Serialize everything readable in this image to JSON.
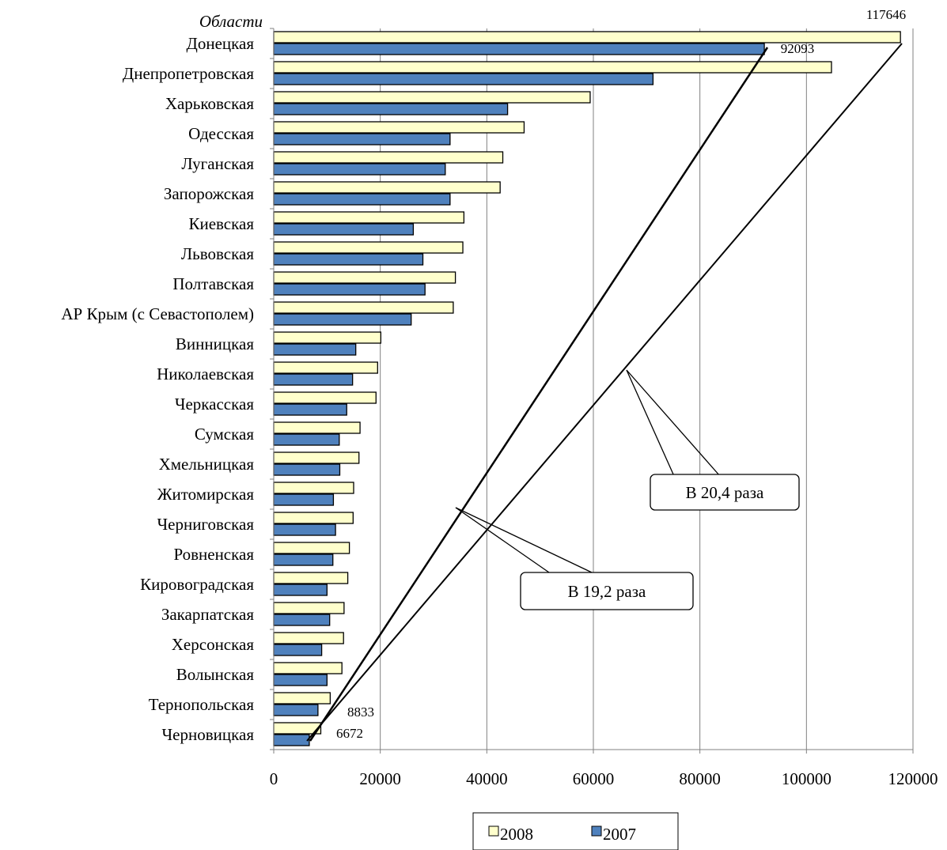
{
  "chart_data": {
    "type": "bar",
    "orientation": "horizontal",
    "y_axis_title": "Области",
    "categories": [
      "Донецкая",
      "Днепропетровская",
      "Харьковская",
      "Одесская",
      "Луганская",
      "Запорожская",
      "Киевская",
      "Львовская",
      "Полтавская",
      "АР Крым (с Севастополем)",
      "Винницкая",
      "Николаевская",
      "Черкасская",
      "Сумская",
      "Хмельницкая",
      "Житомирская",
      "Черниговская",
      "Ровненская",
      "Кировоградская",
      "Закарпатская",
      "Херсонская",
      "Волынская",
      "Тернопольская",
      "Черновицкая"
    ],
    "series": [
      {
        "name": "2008",
        "color": "#ffffcc",
        "values": [
          117646,
          104700,
          59400,
          47000,
          43000,
          42500,
          35700,
          35500,
          34100,
          33700,
          20100,
          19500,
          19200,
          16200,
          16000,
          15000,
          14900,
          14200,
          13900,
          13200,
          13100,
          12800,
          10600,
          8833
        ]
      },
      {
        "name": "2007",
        "color": "#4f81bd",
        "values": [
          92093,
          71200,
          43900,
          33100,
          32200,
          33100,
          26200,
          28000,
          28400,
          25800,
          15400,
          14800,
          13700,
          12300,
          12400,
          11200,
          11600,
          11100,
          10000,
          10500,
          9000,
          10000,
          8300,
          6672
        ]
      }
    ],
    "data_labels": [
      "117646",
      "92093",
      "8833",
      "6672"
    ],
    "xlim": [
      0,
      120000
    ],
    "x_ticks": [
      "0",
      "20000",
      "40000",
      "60000",
      "80000",
      "100000",
      "120000"
    ],
    "grid": "vertical",
    "legend_position": "bottom",
    "annotations": [
      "В 20,4 раза",
      "В 19,2 раза"
    ]
  }
}
